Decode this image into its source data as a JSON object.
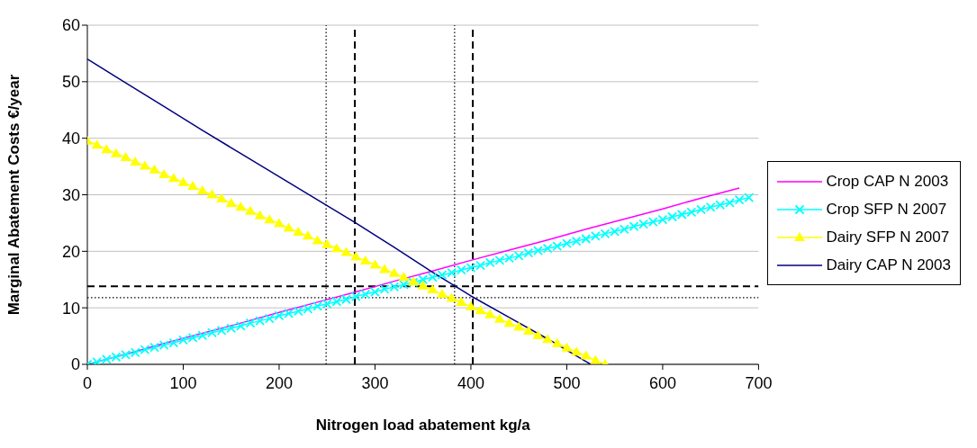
{
  "chart_data": {
    "type": "line",
    "xlabel": "Nitrogen load abatement kg/a",
    "ylabel": "Marginal Abatement Costs €/year",
    "xlim": [
      0,
      700
    ],
    "xticks": [
      0,
      100,
      200,
      300,
      400,
      500,
      600,
      700
    ],
    "ylim": [
      0,
      60
    ],
    "yticks": [
      0,
      10,
      20,
      30,
      40,
      50,
      60
    ],
    "grid": "y",
    "legend": "right",
    "line_style": "solid",
    "series": [
      {
        "name": "Crop CAP N 2003",
        "color": "#ff00ff",
        "marker": "none",
        "x": [
          0,
          40,
          80,
          120,
          160,
          200,
          240,
          280,
          320,
          360,
          400,
          440,
          480,
          520,
          560,
          600,
          640,
          680
        ],
        "values": [
          0,
          1.8,
          3.7,
          5.5,
          7.3,
          9.2,
          11.0,
          12.8,
          14.7,
          16.5,
          18.4,
          20.2,
          22.0,
          23.9,
          25.7,
          27.5,
          29.4,
          31.2
        ]
      },
      {
        "name": "Crop SFP N 2007",
        "color": "#00ffff",
        "marker": "cross",
        "x": [
          0,
          10,
          20,
          30,
          40,
          50,
          60,
          70,
          80,
          90,
          100,
          110,
          120,
          130,
          140,
          150,
          160,
          170,
          180,
          190,
          200,
          210,
          220,
          230,
          240,
          250,
          260,
          270,
          280,
          290,
          300,
          310,
          320,
          330,
          340,
          350,
          360,
          370,
          380,
          390,
          400,
          410,
          420,
          430,
          440,
          450,
          460,
          470,
          480,
          490,
          500,
          510,
          520,
          530,
          540,
          550,
          560,
          570,
          580,
          590,
          600,
          610,
          620,
          630,
          640,
          650,
          660,
          670,
          680,
          690
        ],
        "values": [
          0,
          0.4,
          0.9,
          1.3,
          1.7,
          2.1,
          2.6,
          3.0,
          3.4,
          3.8,
          4.3,
          4.7,
          5.1,
          5.6,
          6.0,
          6.4,
          6.8,
          7.3,
          7.7,
          8.1,
          8.6,
          9.0,
          9.4,
          9.8,
          10.3,
          10.7,
          11.1,
          11.5,
          12.0,
          12.4,
          12.8,
          13.3,
          13.7,
          14.1,
          14.5,
          15.0,
          15.4,
          15.8,
          16.2,
          16.7,
          17.1,
          17.5,
          18.0,
          18.4,
          18.8,
          19.2,
          19.7,
          20.1,
          20.5,
          20.9,
          21.4,
          21.8,
          22.2,
          22.7,
          23.1,
          23.5,
          23.9,
          24.4,
          24.8,
          25.2,
          25.6,
          26.1,
          26.5,
          26.9,
          27.4,
          27.8,
          28.2,
          28.6,
          29.1,
          29.5
        ]
      },
      {
        "name": "Dairy SFP N 2007",
        "color": "#ffff00",
        "marker": "triangle",
        "x": [
          0,
          10,
          20,
          30,
          40,
          50,
          60,
          70,
          80,
          90,
          100,
          110,
          120,
          130,
          140,
          150,
          160,
          170,
          180,
          190,
          200,
          210,
          220,
          230,
          240,
          250,
          260,
          270,
          280,
          290,
          300,
          310,
          320,
          330,
          340,
          350,
          360,
          370,
          380,
          390,
          400,
          410,
          420,
          430,
          440,
          450,
          460,
          470,
          480,
          490,
          500,
          510,
          520,
          530,
          540
        ],
        "values": [
          39.5,
          38.8,
          38.0,
          37.3,
          36.6,
          35.8,
          35.1,
          34.4,
          33.6,
          32.9,
          32.2,
          31.5,
          30.7,
          30.0,
          29.3,
          28.5,
          27.8,
          27.1,
          26.3,
          25.6,
          24.9,
          24.1,
          23.4,
          22.7,
          21.9,
          21.2,
          20.5,
          19.8,
          19.0,
          18.3,
          17.6,
          16.8,
          16.1,
          15.4,
          14.6,
          13.9,
          13.2,
          12.4,
          11.7,
          11.0,
          10.2,
          9.5,
          8.8,
          8.0,
          7.3,
          6.6,
          5.9,
          5.1,
          4.4,
          3.7,
          2.9,
          2.2,
          1.5,
          0.7,
          0
        ]
      },
      {
        "name": "Dairy CAP N 2003",
        "color": "#000080",
        "marker": "none",
        "x": [
          0,
          40,
          80,
          120,
          160,
          200,
          240,
          280,
          320,
          360,
          400,
          440,
          480,
          520,
          525
        ],
        "values": [
          54,
          49.8,
          45.6,
          41.4,
          37.3,
          33.2,
          29.1,
          25.0,
          20.7,
          16.3,
          12.1,
          8.3,
          4.5,
          0.5,
          0
        ]
      }
    ],
    "ref_lines": [
      {
        "axis": "x",
        "value": 279,
        "color": "#000000",
        "line_style": "dashed"
      },
      {
        "axis": "x",
        "value": 402,
        "color": "#000000",
        "line_style": "dashed"
      },
      {
        "axis": "x",
        "value": 249,
        "color": "#000000",
        "line_style": "dotted"
      },
      {
        "axis": "x",
        "value": 383,
        "color": "#000000",
        "line_style": "dotted"
      },
      {
        "axis": "y",
        "value": 13.8,
        "color": "#000000",
        "line_style": "dashed"
      },
      {
        "axis": "y",
        "value": 11.8,
        "color": "#000000",
        "line_style": "dotted"
      }
    ]
  }
}
